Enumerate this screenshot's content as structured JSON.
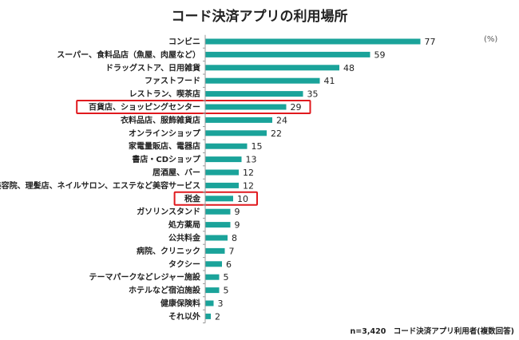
{
  "chart_data": {
    "type": "bar",
    "orientation": "horizontal",
    "title": "コード決済アプリの利用場所",
    "unit_label": "(%)",
    "note": "n=3,420　コード決済アプリ利用者(複数回答)",
    "bar_color": "#1aa39a",
    "highlight_color": "#e0191e",
    "categories": [
      "コンビニ",
      "スーパー、食料品店（魚屋、肉屋など）",
      "ドラッグストア、日用雑貨",
      "ファストフード",
      "レストラン、喫茶店",
      "百貨店、ショッピングセンター",
      "衣料品店、服飾雑貨店",
      "オンラインショップ",
      "家電量販店、電器店",
      "書店・CDショップ",
      "居酒屋、バー",
      "美容院、理髪店、ネイルサロン、エステなど美容サービス",
      "税金",
      "ガソリンスタンド",
      "処方薬局",
      "公共料金",
      "病院、クリニック",
      "タクシー",
      "テーマパークなどレジャー施設",
      "ホテルなど宿泊施設",
      "健康保険料",
      "それ以外"
    ],
    "values": [
      77,
      59,
      48,
      41,
      35,
      29,
      24,
      22,
      15,
      13,
      12,
      12,
      10,
      9,
      9,
      8,
      7,
      6,
      5,
      5,
      3,
      2
    ],
    "highlighted": [
      "百貨店、ショッピングセンター",
      "税金"
    ],
    "xlim": [
      0,
      100
    ],
    "grid": false,
    "legend": "none"
  }
}
